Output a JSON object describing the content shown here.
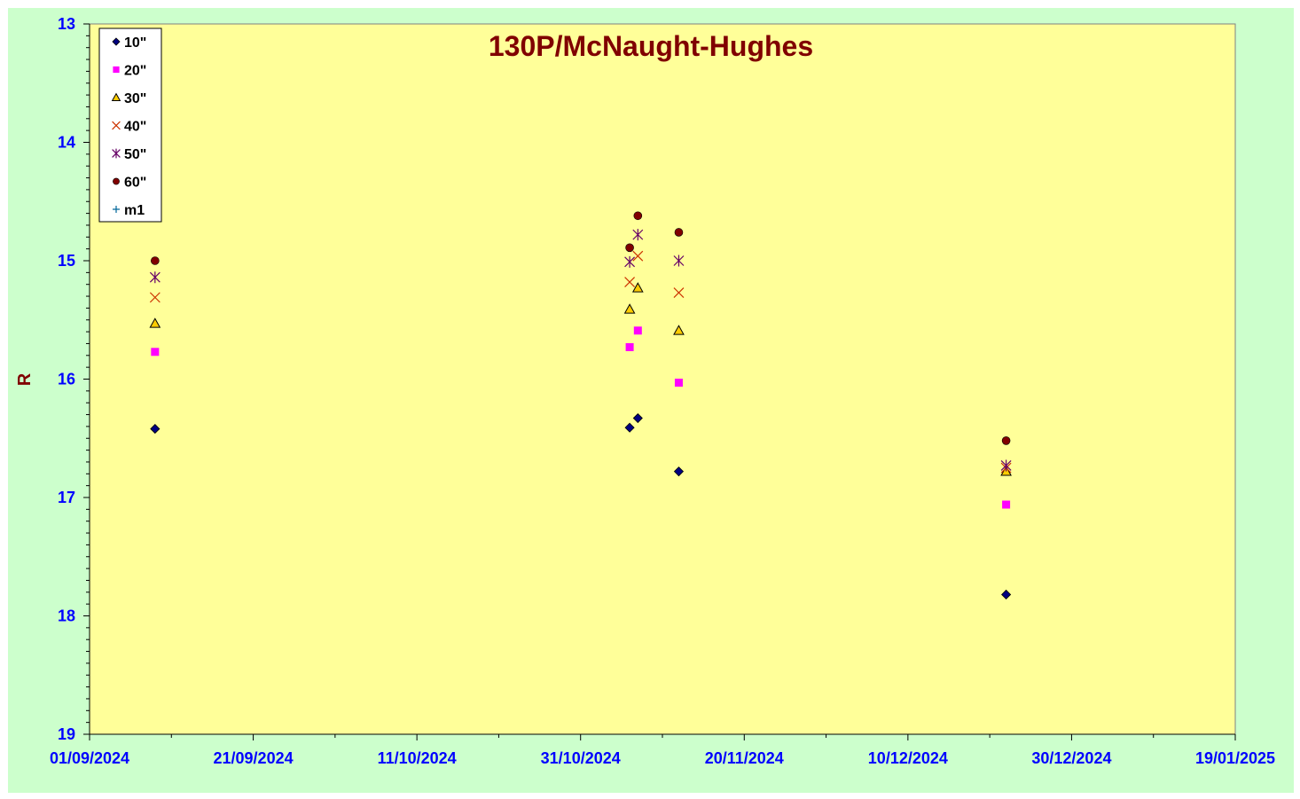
{
  "chart_data": {
    "type": "scatter",
    "title": "130P/McNaught-Hughes",
    "xlabel": "",
    "ylabel": "R",
    "x_axis": {
      "type": "date",
      "min": "2024-09-01",
      "max": "2025-01-19",
      "tick_labels": [
        "01/09/2024",
        "21/09/2024",
        "11/10/2024",
        "31/10/2024",
        "20/11/2024",
        "10/12/2024",
        "30/12/2024",
        "19/01/2025"
      ]
    },
    "y_axis": {
      "min": 13,
      "max": 19,
      "reversed": true,
      "tick_labels": [
        "13",
        "14",
        "15",
        "16",
        "17",
        "18",
        "19"
      ]
    },
    "grid": false,
    "legend_position": "top-left",
    "colors": {
      "plot_background": "#ffff99",
      "chart_background": "#ccffcc",
      "title": "#800000",
      "tick_labels": "#0000ff"
    },
    "series": [
      {
        "name": "10\"",
        "marker": "diamond",
        "color": "#000080",
        "points": [
          [
            "2024-09-09",
            16.42
          ],
          [
            "2024-11-06",
            16.41
          ],
          [
            "2024-11-07",
            16.33
          ],
          [
            "2024-11-12",
            16.78
          ],
          [
            "2024-12-22",
            17.82
          ]
        ]
      },
      {
        "name": "20\"",
        "marker": "square",
        "color": "#ff00ff",
        "points": [
          [
            "2024-09-09",
            15.77
          ],
          [
            "2024-11-06",
            15.73
          ],
          [
            "2024-11-07",
            15.59
          ],
          [
            "2024-11-12",
            16.03
          ],
          [
            "2024-12-22",
            17.06
          ]
        ]
      },
      {
        "name": "30\"",
        "marker": "triangle",
        "color": "#ffcc00",
        "points": [
          [
            "2024-09-09",
            15.53
          ],
          [
            "2024-11-06",
            15.41
          ],
          [
            "2024-11-07",
            15.23
          ],
          [
            "2024-11-12",
            15.59
          ],
          [
            "2024-12-22",
            16.78
          ]
        ]
      },
      {
        "name": "40\"",
        "marker": "x",
        "color": "#cc3300",
        "points": [
          [
            "2024-09-09",
            15.31
          ],
          [
            "2024-11-06",
            15.18
          ],
          [
            "2024-11-07",
            14.96
          ],
          [
            "2024-11-12",
            15.27
          ],
          [
            "2024-12-22",
            16.75
          ]
        ]
      },
      {
        "name": "50\"",
        "marker": "star",
        "color": "#660066",
        "points": [
          [
            "2024-09-09",
            15.14
          ],
          [
            "2024-11-06",
            15.01
          ],
          [
            "2024-11-07",
            14.78
          ],
          [
            "2024-11-12",
            15.0
          ],
          [
            "2024-12-22",
            16.73
          ]
        ]
      },
      {
        "name": "60\"",
        "marker": "circle",
        "color": "#800000",
        "points": [
          [
            "2024-09-09",
            15.0
          ],
          [
            "2024-11-06",
            14.89
          ],
          [
            "2024-11-07",
            14.62
          ],
          [
            "2024-11-12",
            14.76
          ],
          [
            "2024-12-22",
            16.52
          ]
        ]
      },
      {
        "name": "m1",
        "marker": "plus",
        "color": "#006699",
        "points": []
      }
    ]
  }
}
